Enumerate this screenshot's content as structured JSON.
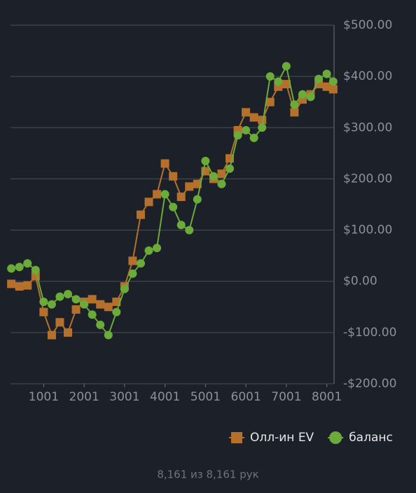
{
  "chart_data": {
    "type": "line",
    "x": [
      200,
      400,
      600,
      800,
      1000,
      1200,
      1400,
      1600,
      1800,
      2000,
      2200,
      2400,
      2600,
      2800,
      3000,
      3200,
      3400,
      3600,
      3800,
      4000,
      4200,
      4400,
      4600,
      4800,
      5000,
      5200,
      5400,
      5600,
      5800,
      6000,
      6200,
      6400,
      6600,
      6800,
      7000,
      7200,
      7400,
      7600,
      7800,
      8000,
      8160
    ],
    "series": [
      {
        "name": "Олл-ин EV",
        "color": "#b5712c",
        "marker": "square",
        "values": [
          -5,
          -10,
          -8,
          10,
          -60,
          -105,
          -80,
          -100,
          -55,
          -40,
          -35,
          -45,
          -50,
          -40,
          -10,
          40,
          130,
          155,
          170,
          230,
          205,
          165,
          185,
          190,
          215,
          200,
          210,
          240,
          295,
          330,
          320,
          315,
          350,
          380,
          385,
          330,
          355,
          365,
          385,
          380,
          375
        ]
      },
      {
        "name": "баланс",
        "color": "#6aab3a",
        "marker": "circle",
        "values": [
          25,
          28,
          35,
          22,
          -40,
          -45,
          -30,
          -25,
          -35,
          -45,
          -65,
          -85,
          -105,
          -60,
          -15,
          15,
          35,
          60,
          65,
          170,
          145,
          110,
          100,
          160,
          235,
          205,
          190,
          220,
          285,
          295,
          280,
          300,
          400,
          390,
          420,
          345,
          365,
          360,
          395,
          405,
          390
        ]
      }
    ],
    "xlim": [
      180,
      8180
    ],
    "xticks": [
      1001,
      2001,
      3001,
      4001,
      5001,
      6001,
      7001,
      8001
    ],
    "ylim": [
      -200,
      500
    ],
    "yticks": [
      {
        "value": -200,
        "label": "-$200.00"
      },
      {
        "value": -100,
        "label": "-$100.00"
      },
      {
        "value": 0,
        "label": "$0.00"
      },
      {
        "value": 100,
        "label": "$100.00"
      },
      {
        "value": 200,
        "label": "$200.00"
      },
      {
        "value": 300,
        "label": "$300.00"
      },
      {
        "value": 400,
        "label": "$400.00"
      },
      {
        "value": 500,
        "label": "$500.00"
      }
    ],
    "grid": true,
    "legend": "bottom-right",
    "footer": "8,161 из 8,161 рук"
  }
}
